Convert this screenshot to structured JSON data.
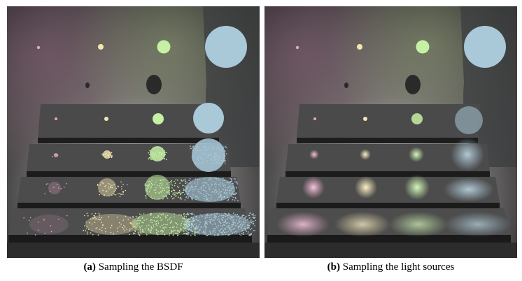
{
  "captions": {
    "a": {
      "label": "(a)",
      "text": " Sampling the BSDF"
    },
    "b": {
      "label": "(b)",
      "text": " Sampling the light sources"
    }
  },
  "scene": {
    "light_colors": [
      "#e8a6c6",
      "#f3e6b0",
      "#c6f0a4",
      "#a9c9d9"
    ],
    "background": "#3a3838",
    "floor": "#2a2a2a"
  }
}
